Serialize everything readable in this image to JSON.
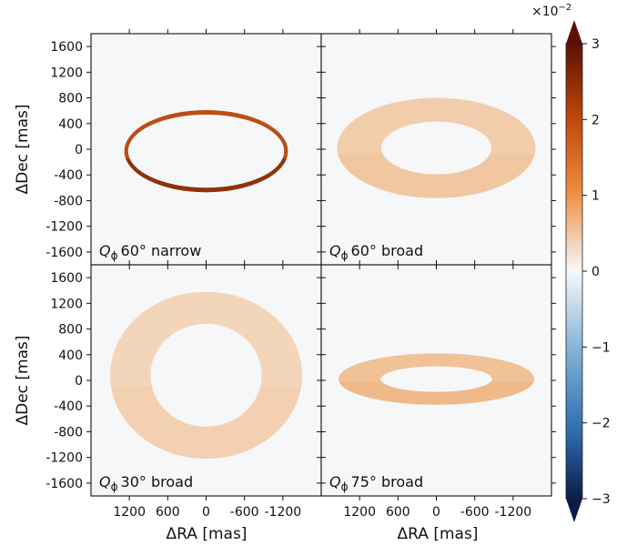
{
  "chart_data": {
    "type": "heatmap",
    "colorbar": {
      "multiplier_label": "×10",
      "multiplier_exponent": "−2",
      "ticks": [
        3,
        2,
        1,
        0,
        -1,
        -2,
        -3
      ],
      "tick_labels": [
        "3",
        "2",
        "1",
        "0",
        "−1",
        "−2",
        "−3"
      ],
      "range": [
        -3,
        3
      ],
      "colors": {
        "min": "#0b1c4a",
        "low": "#2e6fb0",
        "mid": "#f7f8fa",
        "high": "#e9761c",
        "max": "#5b1106"
      },
      "extend": "both"
    },
    "xlabel": "ΔRA [mas]",
    "ylabel": "ΔDec [mas]",
    "xticks": [
      1200,
      600,
      0,
      -600,
      -1200
    ],
    "xtick_labels": [
      "1200",
      "600",
      "0",
      "-600",
      "-1200"
    ],
    "yticks": [
      1600,
      1200,
      800,
      400,
      0,
      -400,
      -800,
      -1200,
      -1600
    ],
    "ytick_labels": [
      "1600",
      "1200",
      "800",
      "400",
      "0",
      "-400",
      "-800",
      "-1200",
      "-1600"
    ],
    "xlim": [
      1800,
      -1800
    ],
    "ylim": [
      -1800,
      1800
    ],
    "panels": [
      {
        "symbol": "Q",
        "subscript": "ϕ",
        "label_text": "60° narrow",
        "ring": {
          "a_inner": 1220,
          "a_outer": 1280,
          "b_inner": 570,
          "b_outer": 640,
          "center_dec": -30,
          "peak_value": 2.3
        }
      },
      {
        "symbol": "Q",
        "subscript": "ϕ",
        "label_text": "60° broad",
        "ring": {
          "a_inner": 860,
          "a_outer": 1550,
          "b_inner": 410,
          "b_outer": 780,
          "center_dec": 20,
          "peak_value": 0.55
        }
      },
      {
        "symbol": "Q",
        "subscript": "ϕ",
        "label_text": "30° broad",
        "ring": {
          "a_inner": 870,
          "a_outer": 1500,
          "b_inner": 800,
          "b_outer": 1300,
          "center_dec": 80,
          "peak_value": 0.45
        }
      },
      {
        "symbol": "Q",
        "subscript": "ϕ",
        "label_text": "75° broad",
        "ring": {
          "a_inner": 870,
          "a_outer": 1530,
          "b_inner": 200,
          "b_outer": 400,
          "center_dec": 20,
          "peak_value": 0.7
        }
      }
    ]
  }
}
